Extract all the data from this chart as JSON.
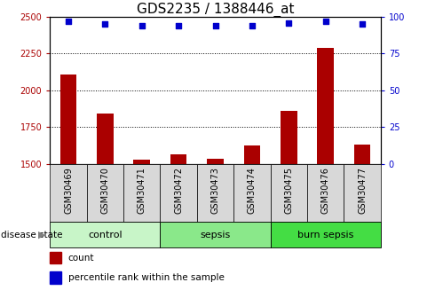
{
  "title": "GDS2235 / 1388446_at",
  "samples": [
    "GSM30469",
    "GSM30470",
    "GSM30471",
    "GSM30472",
    "GSM30473",
    "GSM30474",
    "GSM30475",
    "GSM30476",
    "GSM30477"
  ],
  "counts": [
    2105,
    1840,
    1530,
    1565,
    1535,
    1625,
    1860,
    2290,
    1630
  ],
  "percentiles": [
    97,
    95,
    94,
    94,
    94,
    94,
    96,
    97,
    95
  ],
  "groups": [
    {
      "label": "control",
      "indices": [
        0,
        1,
        2
      ],
      "color": "#c8f5c8"
    },
    {
      "label": "sepsis",
      "indices": [
        3,
        4,
        5
      ],
      "color": "#8ae88a"
    },
    {
      "label": "burn sepsis",
      "indices": [
        6,
        7,
        8
      ],
      "color": "#44dd44"
    }
  ],
  "ylim_left": [
    1500,
    2500
  ],
  "ylim_right": [
    0,
    100
  ],
  "yticks_left": [
    1500,
    1750,
    2000,
    2250,
    2500
  ],
  "yticks_right": [
    0,
    25,
    50,
    75,
    100
  ],
  "bar_color": "#aa0000",
  "scatter_color": "#0000cc",
  "grid_values": [
    1750,
    2000,
    2250
  ],
  "bar_width": 0.45,
  "title_fontsize": 11,
  "tick_fontsize": 7,
  "group_label_fontsize": 8,
  "legend_fontsize": 7.5,
  "sample_box_color": "#d8d8d8",
  "disease_state_label": "disease state"
}
